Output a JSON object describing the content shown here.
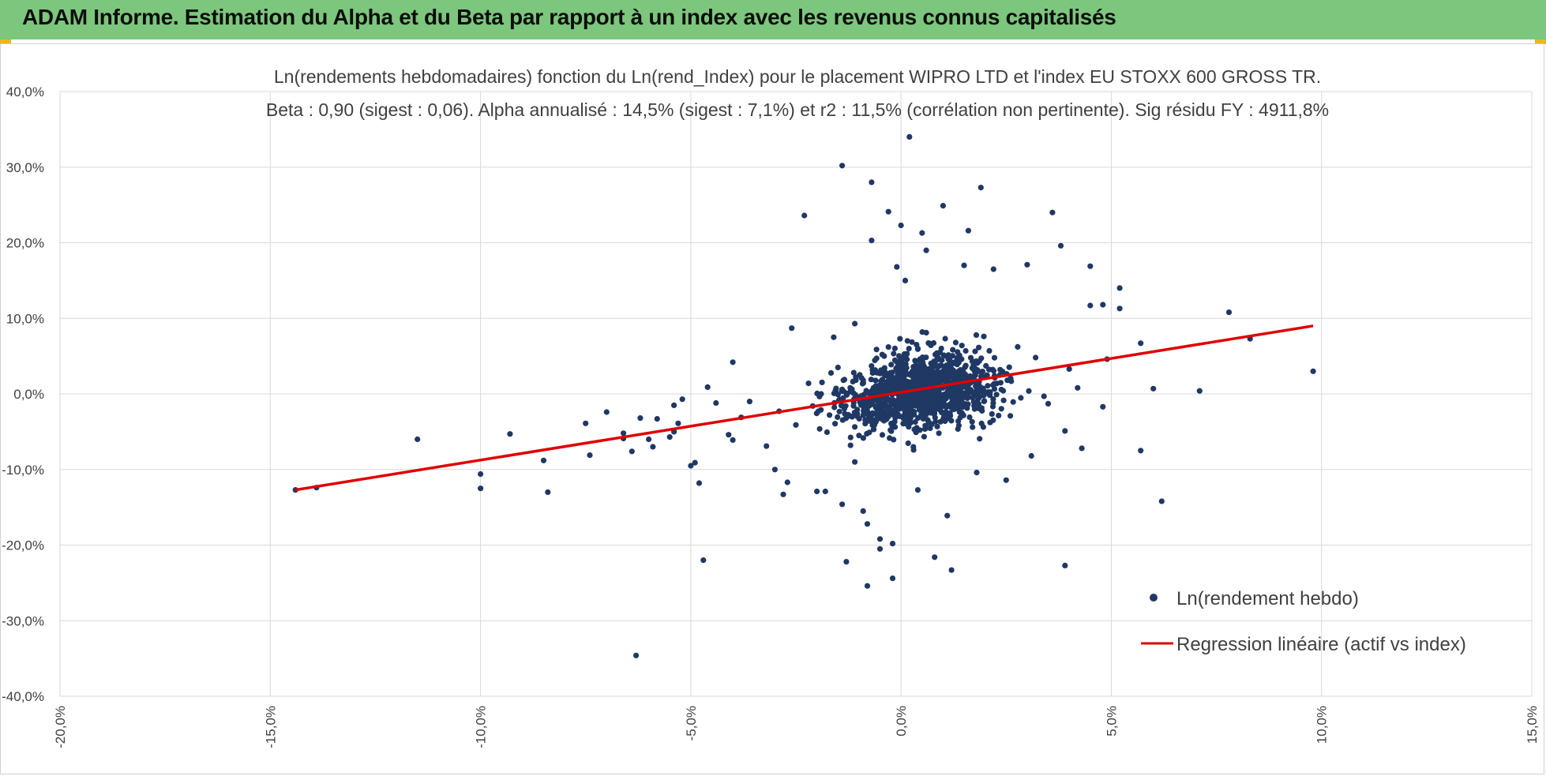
{
  "header": {
    "title": "ADAM Informe. Estimation du Alpha et du Beta par rapport à un index avec les revenus connus capitalisés"
  },
  "colors": {
    "header_bg": "#7dc67d",
    "corner_accent": "#f2b418",
    "points": "#1f3864",
    "regression": "#e00000",
    "grid": "#d9d9d9"
  },
  "chart_data": {
    "type": "scatter",
    "title": "Ln(rendements hebdomadaires) fonction du Ln(rend_Index) pour le placement WIPRO LTD et l'index EU STOXX 600 GROSS TR.",
    "subtitle": "Beta : 0,90 (sigest : 0,06). Alpha annualisé : 14,5% (sigest : 7,1%) et r2 : 11,5% (corrélation non pertinente). Sig résidu FY : 4911,8%",
    "xlabel": "",
    "ylabel": "",
    "xlim": [
      -20,
      15
    ],
    "ylim": [
      -40,
      40
    ],
    "x_ticks": [
      "-20,0%",
      "-15,0%",
      "-10,0%",
      "-5,0%",
      "0,0%",
      "5,0%",
      "10,0%",
      "15,0%"
    ],
    "y_ticks": [
      "40,0%",
      "30,0%",
      "20,0%",
      "10,0%",
      "0,0%",
      "-10,0%",
      "-20,0%",
      "-30,0%",
      "-40,0%"
    ],
    "grid": true,
    "legend_position": "bottom-right",
    "series": [
      {
        "name": "Ln(rendement hebdo)",
        "kind": "scatter",
        "points": [
          [
            -14.4,
            -12.7
          ],
          [
            -13.9,
            -12.4
          ],
          [
            -11.5,
            -6.0
          ],
          [
            -10.0,
            -10.6
          ],
          [
            -10.0,
            -12.5
          ],
          [
            -9.3,
            -5.3
          ],
          [
            -8.5,
            -8.8
          ],
          [
            -8.4,
            -13.0
          ],
          [
            -7.5,
            -3.9
          ],
          [
            -7.4,
            -8.1
          ],
          [
            -7.0,
            -2.4
          ],
          [
            -6.3,
            -34.6
          ],
          [
            -6.6,
            -5.2
          ],
          [
            -6.6,
            -5.9
          ],
          [
            -6.4,
            -7.6
          ],
          [
            -6.2,
            -3.2
          ],
          [
            -6.0,
            -6.0
          ],
          [
            -5.9,
            -7.0
          ],
          [
            -5.8,
            -3.3
          ],
          [
            -5.5,
            -5.7
          ],
          [
            -5.4,
            -5.0
          ],
          [
            -5.4,
            -1.5
          ],
          [
            -5.3,
            -3.9
          ],
          [
            -5.2,
            -0.7
          ],
          [
            -5.0,
            -9.5
          ],
          [
            -4.9,
            -9.1
          ],
          [
            -4.8,
            -11.8
          ],
          [
            -4.7,
            -22.0
          ],
          [
            -4.6,
            0.9
          ],
          [
            -4.4,
            -1.2
          ],
          [
            -4.1,
            -5.4
          ],
          [
            -4.0,
            -6.1
          ],
          [
            -4.0,
            4.2
          ],
          [
            -3.8,
            -3.1
          ],
          [
            -3.6,
            -1.0
          ],
          [
            -3.2,
            -6.9
          ],
          [
            -3.0,
            -10.0
          ],
          [
            -2.8,
            -13.3
          ],
          [
            -2.7,
            -11.7
          ],
          [
            -2.6,
            8.7
          ],
          [
            -2.3,
            23.6
          ],
          [
            -2.1,
            -1.6
          ],
          [
            -2.0,
            -12.9
          ],
          [
            -1.9,
            0.0
          ],
          [
            -1.8,
            -12.9
          ],
          [
            -1.6,
            7.5
          ],
          [
            -1.4,
            -14.6
          ],
          [
            -1.4,
            0.6
          ],
          [
            -1.4,
            30.2
          ],
          [
            -1.3,
            -22.2
          ],
          [
            -1.1,
            -9.0
          ],
          [
            -1.1,
            9.3
          ],
          [
            -1.0,
            -5.5
          ],
          [
            -0.9,
            -15.5
          ],
          [
            -0.8,
            -25.4
          ],
          [
            -0.8,
            -17.2
          ],
          [
            -0.7,
            28.0
          ],
          [
            -0.7,
            20.3
          ],
          [
            -0.6,
            -1.8
          ],
          [
            -0.5,
            -20.5
          ],
          [
            -0.5,
            -19.2
          ],
          [
            -0.4,
            5.0
          ],
          [
            -0.3,
            24.1
          ],
          [
            -0.2,
            -19.8
          ],
          [
            -0.2,
            -24.4
          ],
          [
            -0.1,
            16.8
          ],
          [
            0.0,
            22.3
          ],
          [
            0.1,
            15.0
          ],
          [
            0.2,
            34.0
          ],
          [
            0.4,
            -12.7
          ],
          [
            0.5,
            21.3
          ],
          [
            0.6,
            19.0
          ],
          [
            0.8,
            -21.6
          ],
          [
            1.0,
            24.9
          ],
          [
            1.1,
            -16.1
          ],
          [
            1.2,
            -23.3
          ],
          [
            1.5,
            17.0
          ],
          [
            1.6,
            21.6
          ],
          [
            1.8,
            -10.4
          ],
          [
            1.9,
            27.3
          ],
          [
            2.2,
            16.5
          ],
          [
            2.5,
            -11.4
          ],
          [
            3.0,
            17.1
          ],
          [
            3.1,
            -8.2
          ],
          [
            3.6,
            24.0
          ],
          [
            3.8,
            19.6
          ],
          [
            3.9,
            -22.7
          ],
          [
            3.9,
            -4.9
          ],
          [
            4.3,
            -7.2
          ],
          [
            4.5,
            16.9
          ],
          [
            4.5,
            11.7
          ],
          [
            4.8,
            11.8
          ],
          [
            4.8,
            -1.7
          ],
          [
            4.9,
            4.6
          ],
          [
            5.2,
            11.3
          ],
          [
            5.2,
            14.0
          ],
          [
            5.7,
            6.7
          ],
          [
            5.7,
            -7.5
          ],
          [
            6.0,
            0.7
          ],
          [
            6.2,
            -14.2
          ],
          [
            7.1,
            0.4
          ],
          [
            7.8,
            10.8
          ],
          [
            8.3,
            7.3
          ],
          [
            9.8,
            3.0
          ],
          [
            -2.9,
            -2.3
          ],
          [
            -2.5,
            -4.1
          ],
          [
            -2.2,
            1.4
          ],
          [
            -1.7,
            -2.8
          ],
          [
            -1.5,
            3.5
          ],
          [
            -1.2,
            -6.8
          ],
          [
            -0.9,
            1.8
          ],
          [
            -0.6,
            -3.7
          ],
          [
            -0.3,
            6.2
          ],
          [
            0.3,
            -7.4
          ],
          [
            0.6,
            8.1
          ],
          [
            0.9,
            -5.2
          ],
          [
            1.3,
            6.8
          ],
          [
            1.7,
            -4.4
          ],
          [
            2.1,
            5.7
          ],
          [
            2.6,
            -2.9
          ],
          [
            3.2,
            4.8
          ],
          [
            3.5,
            -1.3
          ],
          [
            4.0,
            3.3
          ],
          [
            4.2,
            0.8
          ]
        ]
      },
      {
        "name": "Regression linéaire (actif vs index)",
        "kind": "line",
        "points": [
          [
            -14.4,
            -12.7
          ],
          [
            9.8,
            9.0
          ]
        ]
      }
    ]
  }
}
